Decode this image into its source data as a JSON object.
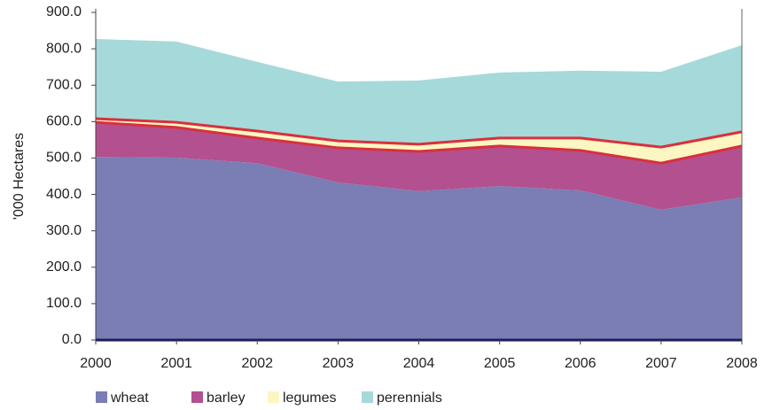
{
  "chart_data": {
    "type": "stacked-area",
    "y_label": "'000 Hectares",
    "categories": [
      "2000",
      "2001",
      "2002",
      "2003",
      "2004",
      "2005",
      "2006",
      "2007",
      "2008"
    ],
    "series": [
      {
        "name": "wheat",
        "color": "#7b7db5",
        "values": [
          503,
          501,
          486,
          433,
          409,
          423,
          411,
          358,
          392
        ]
      },
      {
        "name": "barley",
        "color": "#b3508f",
        "edge_color": "#d9303c",
        "values": [
          95,
          83,
          69,
          95,
          109,
          110,
          110,
          128,
          141
        ]
      },
      {
        "name": "legumes",
        "color": "#fcf6c2",
        "edge_color": "#d9303c",
        "values": [
          10,
          14,
          19,
          19,
          20,
          22,
          34,
          44,
          39
        ]
      },
      {
        "name": "perennials",
        "color": "#a6d9da",
        "values": [
          219,
          222,
          190,
          163,
          175,
          180,
          185,
          207,
          238
        ]
      }
    ],
    "ylim": [
      0,
      900
    ],
    "yticks": [
      {
        "value": 0,
        "label": "0.0"
      },
      {
        "value": 100,
        "label": "100.0"
      },
      {
        "value": 200,
        "label": "200.0"
      },
      {
        "value": 300,
        "label": "300.0"
      },
      {
        "value": 400,
        "label": "400.0"
      },
      {
        "value": 500,
        "label": "500.0"
      },
      {
        "value": 600,
        "label": "600.0"
      },
      {
        "value": 700,
        "label": "700.0"
      },
      {
        "value": 800,
        "label": "800.0"
      },
      {
        "value": 900,
        "label": "900.0"
      }
    ],
    "grid": false,
    "legend": "bottom"
  }
}
